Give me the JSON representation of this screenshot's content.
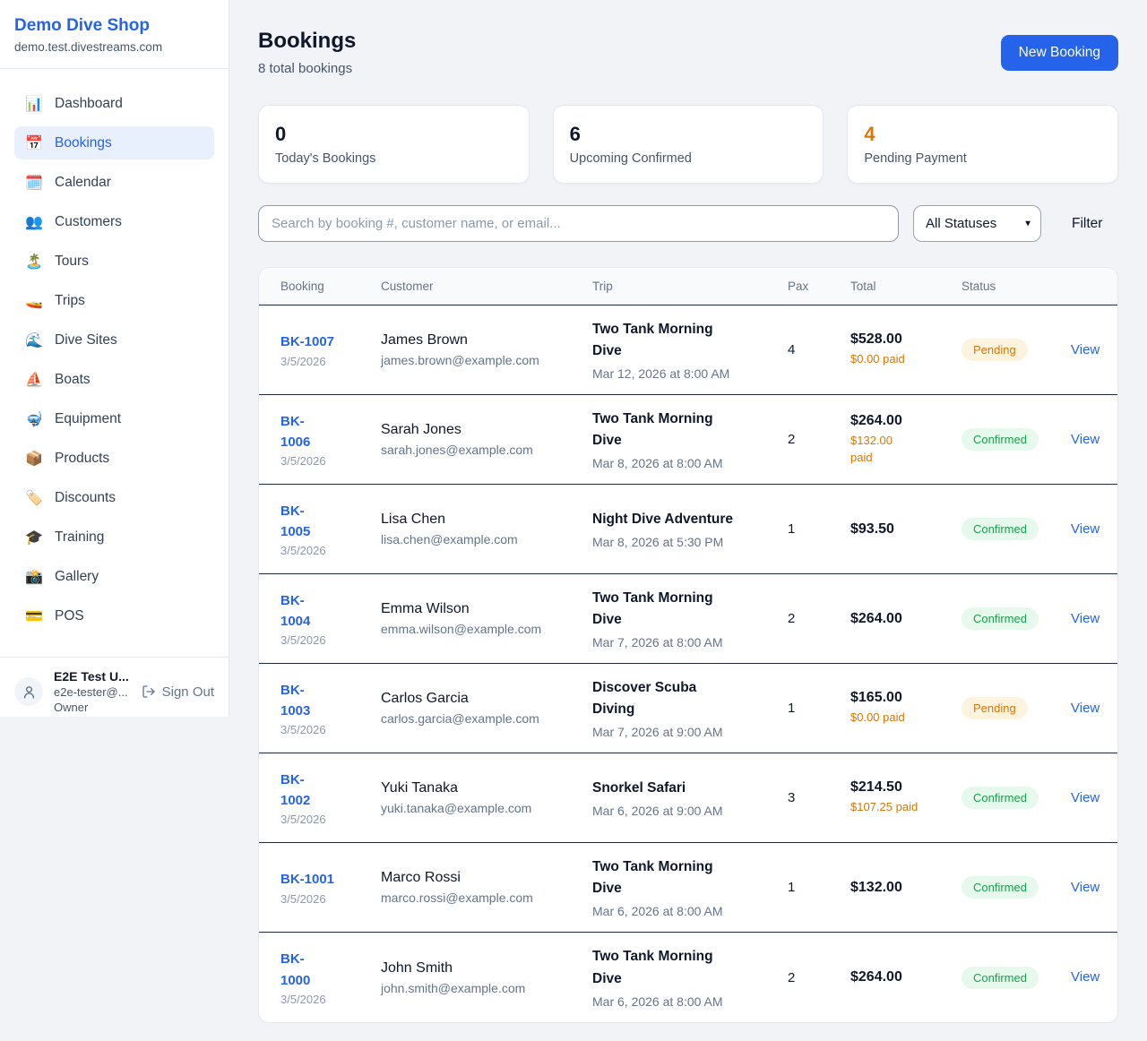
{
  "sidebar": {
    "shop_name": "Demo Dive Shop",
    "shop_domain": "demo.test.divestreams.com",
    "items": [
      {
        "icon": "📊",
        "label": "Dashboard",
        "active": false
      },
      {
        "icon": "📅",
        "label": "Bookings",
        "active": true
      },
      {
        "icon": "🗓️",
        "label": "Calendar",
        "active": false
      },
      {
        "icon": "👥",
        "label": "Customers",
        "active": false
      },
      {
        "icon": "🏝️",
        "label": "Tours",
        "active": false
      },
      {
        "icon": "🚤",
        "label": "Trips",
        "active": false
      },
      {
        "icon": "🌊",
        "label": "Dive Sites",
        "active": false
      },
      {
        "icon": "⛵",
        "label": "Boats",
        "active": false
      },
      {
        "icon": "🤿",
        "label": "Equipment",
        "active": false
      },
      {
        "icon": "📦",
        "label": "Products",
        "active": false
      },
      {
        "icon": "🏷️",
        "label": "Discounts",
        "active": false
      },
      {
        "icon": "🎓",
        "label": "Training",
        "active": false
      },
      {
        "icon": "📸",
        "label": "Gallery",
        "active": false
      },
      {
        "icon": "💳",
        "label": "POS",
        "active": false
      }
    ],
    "user": {
      "name": "E2E Test U...",
      "email": "e2e-tester@...",
      "role": "Owner",
      "sign_out_label": "Sign Out"
    }
  },
  "header": {
    "title": "Bookings",
    "subtitle": "8 total bookings",
    "new_booking_label": "New Booking"
  },
  "stats": [
    {
      "value": "0",
      "label": "Today's Bookings"
    },
    {
      "value": "6",
      "label": "Upcoming Confirmed"
    },
    {
      "value": "4",
      "label": "Pending Payment"
    }
  ],
  "filters": {
    "search_placeholder": "Search by booking #, customer name, or email...",
    "status_selected": "All Statuses",
    "filter_label": "Filter"
  },
  "table": {
    "columns": [
      "Booking",
      "Customer",
      "Trip",
      "Pax",
      "Total",
      "Status"
    ],
    "view_label": "View",
    "rows": [
      {
        "booking_id_lines": [
          "BK-1007"
        ],
        "booking_date": "3/5/2026",
        "customer_name": "James Brown",
        "customer_email": "james.brown@example.com",
        "trip_name_lines": [
          "Two Tank Morning",
          "Dive"
        ],
        "trip_datetime": "Mar 12, 2026 at 8:00 AM",
        "pax": "4",
        "total": "$528.00",
        "paid_lines": [
          "$0.00 paid"
        ],
        "status": "Pending"
      },
      {
        "booking_id_lines": [
          "BK-",
          "1006"
        ],
        "booking_date": "3/5/2026",
        "customer_name": "Sarah Jones",
        "customer_email": "sarah.jones@example.com",
        "trip_name_lines": [
          "Two Tank Morning",
          "Dive"
        ],
        "trip_datetime": "Mar 8, 2026 at 8:00 AM",
        "pax": "2",
        "total": "$264.00",
        "paid_lines": [
          "$132.00",
          "paid"
        ],
        "status": "Confirmed"
      },
      {
        "booking_id_lines": [
          "BK-",
          "1005"
        ],
        "booking_date": "3/5/2026",
        "customer_name": "Lisa Chen",
        "customer_email": "lisa.chen@example.com",
        "trip_name_lines": [
          "Night Dive Adventure"
        ],
        "trip_datetime": "Mar 8, 2026 at 5:30 PM",
        "pax": "1",
        "total": "$93.50",
        "paid_lines": [],
        "status": "Confirmed"
      },
      {
        "booking_id_lines": [
          "BK-",
          "1004"
        ],
        "booking_date": "3/5/2026",
        "customer_name": "Emma Wilson",
        "customer_email": "emma.wilson@example.com",
        "trip_name_lines": [
          "Two Tank Morning",
          "Dive"
        ],
        "trip_datetime": "Mar 7, 2026 at 8:00 AM",
        "pax": "2",
        "total": "$264.00",
        "paid_lines": [],
        "status": "Confirmed"
      },
      {
        "booking_id_lines": [
          "BK-",
          "1003"
        ],
        "booking_date": "3/5/2026",
        "customer_name": "Carlos Garcia",
        "customer_email": "carlos.garcia@example.com",
        "trip_name_lines": [
          "Discover Scuba",
          "Diving"
        ],
        "trip_datetime": "Mar 7, 2026 at 9:00 AM",
        "pax": "1",
        "total": "$165.00",
        "paid_lines": [
          "$0.00 paid"
        ],
        "status": "Pending"
      },
      {
        "booking_id_lines": [
          "BK-",
          "1002"
        ],
        "booking_date": "3/5/2026",
        "customer_name": "Yuki Tanaka",
        "customer_email": "yuki.tanaka@example.com",
        "trip_name_lines": [
          "Snorkel Safari"
        ],
        "trip_datetime": "Mar 6, 2026 at 9:00 AM",
        "pax": "3",
        "total": "$214.50",
        "paid_lines": [
          "$107.25 paid"
        ],
        "status": "Confirmed"
      },
      {
        "booking_id_lines": [
          "BK-1001"
        ],
        "booking_date": "3/5/2026",
        "customer_name": "Marco Rossi",
        "customer_email": "marco.rossi@example.com",
        "trip_name_lines": [
          "Two Tank Morning",
          "Dive"
        ],
        "trip_datetime": "Mar 6, 2026 at 8:00 AM",
        "pax": "1",
        "total": "$132.00",
        "paid_lines": [],
        "status": "Confirmed"
      },
      {
        "booking_id_lines": [
          "BK-",
          "1000"
        ],
        "booking_date": "3/5/2026",
        "customer_name": "John Smith",
        "customer_email": "john.smith@example.com",
        "trip_name_lines": [
          "Two Tank Morning",
          "Dive"
        ],
        "trip_datetime": "Mar 6, 2026 at 8:00 AM",
        "pax": "2",
        "total": "$264.00",
        "paid_lines": [],
        "status": "Confirmed"
      }
    ]
  },
  "colors": {
    "brand_blue": "#2563eb",
    "pending_orange": "#d97706",
    "confirmed_green": "#16a34a",
    "active_nav_bg": "#e8f0fe",
    "pending_badge_bg": "#fdf4e0",
    "confirmed_badge_bg": "#e7f8ed"
  }
}
